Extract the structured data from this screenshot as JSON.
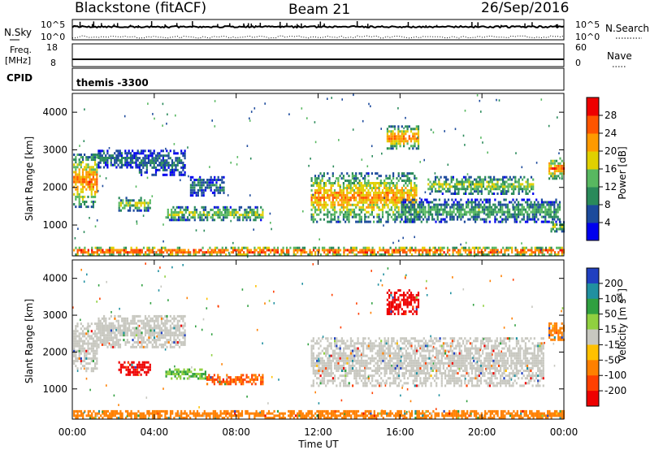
{
  "header": {
    "station": "Blackstone (fitACF)",
    "beam": "Beam 21",
    "date": "26/Sep/2016"
  },
  "top_panels": {
    "nsky_label": "N.Sky",
    "nsearch_label": "N.Search",
    "nsky_ticks": [
      "10^5",
      "10^0"
    ],
    "nsearch_ticks": [
      "10^5",
      "10^0"
    ],
    "freq_label_1": "Freq.",
    "freq_label_2": "[MHz]",
    "freq_ticks": [
      "18",
      "8"
    ],
    "nave_label": "Nave",
    "nave_ticks": [
      "60",
      "0"
    ],
    "cpid_label": "CPID",
    "cpid_value": "themis -3300"
  },
  "colors": {
    "power_scale": [
      "#0000ee",
      "#1c4a9c",
      "#2a8a5a",
      "#58b860",
      "#e0d000",
      "#ff9a00",
      "#ff5500",
      "#ee0000"
    ],
    "velocity_scale": [
      "#2040c0",
      "#2090a0",
      "#30a040",
      "#90d040",
      "#c8c8c0",
      "#ffc000",
      "#ff8000",
      "#ff4000",
      "#ee0000"
    ]
  },
  "chart_data": [
    {
      "type": "heatmap",
      "title": "",
      "xlabel": "",
      "ylabel": "Slant Range [km]",
      "xlim": [
        "00:00",
        "24:00"
      ],
      "ylim": [
        180,
        4500
      ],
      "y_ticks": [
        "1000",
        "2000",
        "3000",
        "4000"
      ],
      "colorbar": {
        "label": "Power [dB]",
        "range": [
          0,
          30
        ],
        "tick_labels": [
          "4",
          "8",
          "12",
          "16",
          "20",
          "24",
          "28"
        ]
      },
      "echo_regions": [
        {
          "t_start": 0.0,
          "t_end": 1.2,
          "r_min": 1450,
          "r_max": 2900,
          "peak_power_db": 24
        },
        {
          "t_start": 1.2,
          "t_end": 3.2,
          "r_min": 2500,
          "r_max": 3000,
          "peak_power_db": 8
        },
        {
          "t_start": 3.2,
          "t_end": 5.5,
          "r_min": 2300,
          "r_max": 3000,
          "peak_power_db": 8
        },
        {
          "t_start": 2.2,
          "t_end": 3.8,
          "r_min": 1350,
          "r_max": 1750,
          "peak_power_db": 16
        },
        {
          "t_start": 4.5,
          "t_end": 9.3,
          "r_min": 1100,
          "r_max": 1500,
          "peak_power_db": 16
        },
        {
          "t_start": 5.7,
          "t_end": 7.4,
          "r_min": 1750,
          "r_max": 2300,
          "peak_power_db": 8
        },
        {
          "t_start": 11.6,
          "t_end": 16.8,
          "r_min": 1050,
          "r_max": 2400,
          "peak_power_db": 22
        },
        {
          "t_start": 16.0,
          "t_end": 23.8,
          "r_min": 1050,
          "r_max": 1700,
          "peak_power_db": 12
        },
        {
          "t_start": 17.3,
          "t_end": 22.5,
          "r_min": 1800,
          "r_max": 2300,
          "peak_power_db": 16
        },
        {
          "t_start": 15.3,
          "t_end": 16.9,
          "r_min": 3000,
          "r_max": 3650,
          "peak_power_db": 24
        },
        {
          "t_start": 23.2,
          "t_end": 24.0,
          "r_min": 2200,
          "r_max": 2800,
          "peak_power_db": 24
        },
        {
          "t_start": 23.3,
          "t_end": 24.0,
          "r_min": 800,
          "r_max": 1100,
          "peak_power_db": 16
        },
        {
          "t_start": 0.0,
          "t_end": 24.0,
          "r_min": 180,
          "r_max": 420,
          "peak_power_db": 28
        }
      ]
    },
    {
      "type": "heatmap",
      "title": "",
      "xlabel": "Time UT",
      "ylabel": "Slant Range [km]",
      "xlim": [
        "00:00",
        "24:00"
      ],
      "ylim": [
        180,
        4500
      ],
      "x_ticks": [
        "00:00",
        "04:00",
        "08:00",
        "12:00",
        "16:00",
        "20:00",
        "00:00"
      ],
      "y_ticks": [
        "1000",
        "2000",
        "3000",
        "4000"
      ],
      "colorbar": {
        "label": "Velocity [m s-1]",
        "tick_labels": [
          "200",
          "100",
          "50",
          "15",
          "-15",
          "-50",
          "-100",
          "-200"
        ]
      },
      "echo_regions": [
        {
          "t_start": 0.0,
          "t_end": 1.2,
          "r_min": 1450,
          "r_max": 2800,
          "velocity_ms": 0
        },
        {
          "t_start": 1.2,
          "t_end": 5.5,
          "r_min": 2100,
          "r_max": 3000,
          "velocity_ms": 0
        },
        {
          "t_start": 2.2,
          "t_end": 3.8,
          "r_min": 1350,
          "r_max": 1750,
          "velocity_ms": -200
        },
        {
          "t_start": 4.5,
          "t_end": 6.5,
          "r_min": 1250,
          "r_max": 1550,
          "velocity_ms": 30
        },
        {
          "t_start": 6.5,
          "t_end": 9.3,
          "r_min": 1100,
          "r_max": 1400,
          "velocity_ms": -75
        },
        {
          "t_start": 11.6,
          "t_end": 23.0,
          "r_min": 1050,
          "r_max": 2400,
          "velocity_ms": 0
        },
        {
          "t_start": 15.3,
          "t_end": 16.9,
          "r_min": 3000,
          "r_max": 3700,
          "velocity_ms": -200
        },
        {
          "t_start": 23.2,
          "t_end": 24.0,
          "r_min": 2300,
          "r_max": 2800,
          "velocity_ms": -40
        },
        {
          "t_start": 0.0,
          "t_end": 24.0,
          "r_min": 180,
          "r_max": 420,
          "velocity_ms": -50
        }
      ]
    }
  ]
}
